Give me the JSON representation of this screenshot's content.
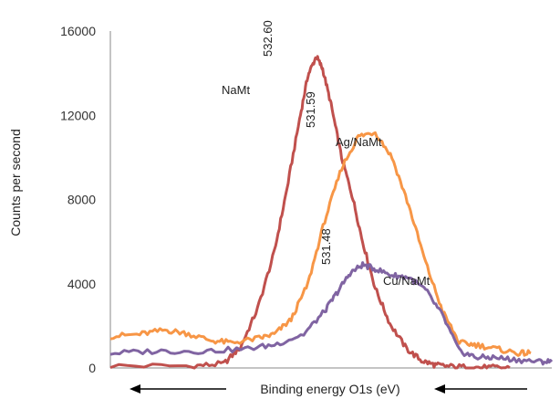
{
  "chart_data": {
    "type": "line",
    "title": "",
    "xlabel": "Binding energy O1s (eV)",
    "ylabel": "Counts per second",
    "x_direction": "decreasing to the right",
    "xlim": [
      537.5,
      527.0
    ],
    "ylim": [
      0,
      16000
    ],
    "yticks": [
      0,
      4000,
      8000,
      12000,
      16000
    ],
    "ytick_labels": [
      "0",
      "4000",
      "8000",
      "12000",
      "16000"
    ],
    "grid": false,
    "legend": "none (series labeled directly on chart)",
    "series": [
      {
        "name": "NaMt",
        "color": "#c0504d",
        "peak_label": "532.60",
        "x": [
          537.5,
          535.5,
          534.8,
          534.4,
          534.0,
          533.6,
          533.3,
          533.0,
          532.8,
          532.6,
          532.45,
          532.25,
          532.0,
          531.75,
          531.5,
          531.2,
          530.85,
          530.45,
          530.1,
          529.8,
          529.5,
          529.0,
          528.5,
          528.0
        ],
        "y": [
          100,
          100,
          200,
          1000,
          2800,
          5500,
          8500,
          11800,
          13900,
          14800,
          14200,
          12500,
          10000,
          8200,
          6000,
          3800,
          2100,
          900,
          350,
          150,
          80,
          40,
          20,
          10
        ]
      },
      {
        "name": "Ag/NaMt",
        "color": "#f79646",
        "peak_label": "531.59",
        "x": [
          537.5,
          536.8,
          536.2,
          535.7,
          535.1,
          534.6,
          534.0,
          533.6,
          533.2,
          532.8,
          532.4,
          532.0,
          531.6,
          531.2,
          530.8,
          530.4,
          530.0,
          529.6,
          529.2,
          528.8,
          528.3,
          527.8,
          527.5
        ],
        "y": [
          1500,
          1600,
          1800,
          1650,
          1300,
          1200,
          1400,
          1600,
          2300,
          4000,
          7000,
          9500,
          11000,
          11200,
          10000,
          7700,
          5000,
          2700,
          1200,
          1100,
          900,
          700,
          700
        ]
      },
      {
        "name": "Cu/NaMt",
        "color": "#8064a2",
        "peak_label": "531.48",
        "x": [
          537.5,
          536.4,
          535.3,
          534.3,
          533.6,
          532.9,
          532.4,
          532.1,
          531.8,
          531.5,
          531.2,
          530.8,
          530.4,
          530.0,
          529.6,
          529.2,
          528.8,
          528.4,
          527.9,
          527.3,
          527.0
        ],
        "y": [
          700,
          800,
          800,
          900,
          1100,
          1600,
          2700,
          3600,
          4500,
          4900,
          4700,
          4400,
          4300,
          3700,
          2500,
          800,
          500,
          500,
          400,
          300,
          300
        ]
      }
    ]
  }
}
